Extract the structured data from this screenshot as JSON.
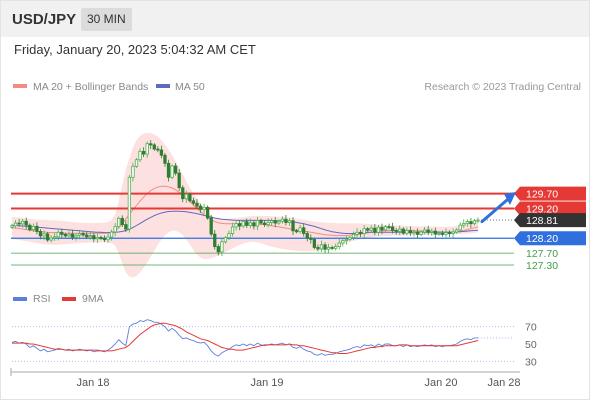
{
  "header": {
    "symbol": "USD/JPY",
    "timeframe": "30 MIN"
  },
  "timestamp": "Friday, January 20, 2023 5:04:32 AM CET",
  "legend": {
    "ma20_label": "MA 20 + Bollinger Bands",
    "ma50_label": "MA 50",
    "copyright": "Research © 2023 Trading Central",
    "rsi_label": "RSI",
    "rsi_ma_label": "9MA"
  },
  "colors": {
    "bullish": "#4caf50",
    "bearish": "#2e7d32",
    "bands": "#fde1e1",
    "ma20": "#f28b82",
    "ma50": "#5c6bc0",
    "resistance": "#e53935",
    "pivot": "#2f6fde",
    "support": "#43a047",
    "current": "#333333",
    "rsi": "#5b7fdb",
    "rsi_ma": "#e53935",
    "arrow": "#2f6fde"
  },
  "chart_data": [
    {
      "type": "candlestick",
      "x_ticks": [
        "Jan 18",
        "Jan 19",
        "Jan 20",
        "Jan 28"
      ],
      "price_levels": [
        {
          "value": 129.7,
          "label": "129.70",
          "kind": "resistance"
        },
        {
          "value": 129.2,
          "label": "129.20",
          "kind": "resistance"
        },
        {
          "value": 128.81,
          "label": "128.81",
          "kind": "current"
        },
        {
          "value": 128.2,
          "label": "128.20",
          "kind": "pivot"
        },
        {
          "value": 127.7,
          "label": "127.70",
          "kind": "support"
        },
        {
          "value": 127.3,
          "label": "127.30",
          "kind": "support"
        }
      ],
      "close": [
        128.62,
        128.71,
        128.68,
        128.77,
        128.64,
        128.49,
        128.6,
        128.43,
        128.28,
        128.35,
        128.14,
        128.21,
        128.25,
        128.4,
        128.33,
        128.28,
        128.34,
        128.24,
        128.3,
        128.36,
        128.31,
        128.25,
        128.29,
        128.18,
        128.23,
        128.2,
        128.15,
        128.24,
        128.41,
        128.59,
        128.87,
        128.66,
        128.51,
        130.25,
        130.62,
        130.84,
        131.12,
        131.03,
        131.38,
        131.34,
        131.2,
        131.17,
        130.99,
        130.72,
        130.25,
        130.63,
        130.39,
        129.9,
        129.53,
        129.68,
        129.46,
        129.38,
        129.28,
        129.17,
        129.24,
        128.88,
        128.34,
        127.92,
        127.74,
        128.08,
        128.22,
        128.36,
        128.58,
        128.69,
        128.61,
        128.76,
        128.63,
        128.72,
        128.61,
        128.8,
        128.71,
        128.66,
        128.73,
        128.79,
        128.71,
        128.77,
        128.84,
        128.73,
        128.79,
        128.45,
        128.43,
        128.55,
        128.36,
        128.21,
        128.16,
        127.89,
        127.84,
        127.98,
        127.83,
        127.89,
        127.86,
        127.92,
        128.04,
        128.12,
        128.16,
        128.22,
        128.33,
        128.4,
        128.36,
        128.52,
        128.47,
        128.54,
        128.4,
        128.57,
        128.48,
        128.59,
        128.58,
        128.46,
        128.44,
        128.51,
        128.37,
        128.46,
        128.38,
        128.41,
        128.33,
        128.41,
        128.48,
        128.4,
        128.44,
        128.34,
        128.36,
        128.33,
        128.39,
        128.36,
        128.41,
        128.48,
        128.64,
        128.7,
        128.76,
        128.69,
        128.79,
        128.81
      ],
      "bands_upper": [
        128.92,
        128.91,
        128.9,
        128.89,
        128.87,
        128.85,
        128.84,
        128.83,
        128.82,
        128.82,
        128.81,
        128.8,
        128.8,
        128.79,
        128.78,
        128.77,
        128.76,
        128.75,
        128.74,
        128.73,
        128.72,
        128.72,
        128.71,
        128.71,
        128.72,
        128.72,
        128.73,
        128.75,
        128.81,
        129.0,
        129.45,
        130.0,
        130.5,
        130.9,
        131.25,
        131.5,
        131.65,
        131.72,
        131.75,
        131.74,
        131.7,
        131.62,
        131.5,
        131.35,
        131.18,
        131.0,
        130.8,
        130.58,
        130.35,
        130.12,
        129.9,
        129.7,
        129.52,
        129.36,
        129.22,
        129.08,
        128.97,
        128.89,
        128.86,
        128.85,
        128.85,
        128.86,
        128.87,
        128.88,
        128.89,
        128.9,
        128.92,
        128.94,
        128.95,
        128.95,
        128.95,
        128.95,
        128.95,
        128.94,
        128.93,
        128.92,
        128.92,
        128.91,
        128.9,
        128.88,
        128.86,
        128.84,
        128.82,
        128.8,
        128.78,
        128.76,
        128.75,
        128.74,
        128.73,
        128.72,
        128.72,
        128.71,
        128.7,
        128.7,
        128.7,
        128.7,
        128.7,
        128.7,
        128.7,
        128.69,
        128.69,
        128.68,
        128.67,
        128.66,
        128.66,
        128.65,
        128.64,
        128.64,
        128.63,
        128.63,
        128.62,
        128.62,
        128.61,
        128.61,
        128.6,
        128.6,
        128.6,
        128.59,
        128.59,
        128.59,
        128.58,
        128.58,
        128.58,
        128.59,
        128.6,
        128.62,
        128.65,
        128.68,
        128.72,
        128.76,
        128.81,
        128.86
      ],
      "bands_lower": [
        128.18,
        128.16,
        128.14,
        128.12,
        128.1,
        128.08,
        128.06,
        128.04,
        128.02,
        128.0,
        127.99,
        127.98,
        127.98,
        127.98,
        127.99,
        128.0,
        128.01,
        128.02,
        128.03,
        128.04,
        128.05,
        128.05,
        128.06,
        128.06,
        128.06,
        128.06,
        128.06,
        128.05,
        128.03,
        127.95,
        127.7,
        127.35,
        127.05,
        126.9,
        126.88,
        126.93,
        127.05,
        127.2,
        127.38,
        127.58,
        127.78,
        127.98,
        128.15,
        128.3,
        128.4,
        128.45,
        128.45,
        128.4,
        128.3,
        128.15,
        127.98,
        127.8,
        127.65,
        127.55,
        127.5,
        127.5,
        127.53,
        127.57,
        127.62,
        127.68,
        127.74,
        127.8,
        127.86,
        127.92,
        127.98,
        128.02,
        128.06,
        128.08,
        128.08,
        128.06,
        128.03,
        127.99,
        127.95,
        127.92,
        127.89,
        127.86,
        127.84,
        127.82,
        127.8,
        127.79,
        127.78,
        127.77,
        127.76,
        127.76,
        127.76,
        127.77,
        127.78,
        127.8,
        127.82,
        127.85,
        127.88,
        127.92,
        127.96,
        128.0,
        128.04,
        128.08,
        128.11,
        128.14,
        128.17,
        128.19,
        128.21,
        128.23,
        128.25,
        128.26,
        128.27,
        128.28,
        128.28,
        128.29,
        128.29,
        128.29,
        128.3,
        128.3,
        128.3,
        128.31,
        128.31,
        128.31,
        128.31,
        128.32,
        128.32,
        128.32,
        128.32,
        128.33,
        128.33,
        128.33,
        128.33,
        128.34,
        128.34,
        128.35,
        128.36,
        128.37,
        128.38,
        128.39
      ],
      "ma20": [
        128.55,
        128.54,
        128.53,
        128.51,
        128.49,
        128.47,
        128.45,
        128.43,
        128.42,
        128.41,
        128.4,
        128.39,
        128.39,
        128.38,
        128.38,
        128.37,
        128.37,
        128.37,
        128.37,
        128.37,
        128.37,
        128.37,
        128.37,
        128.37,
        128.37,
        128.37,
        128.37,
        128.38,
        128.4,
        128.45,
        128.55,
        128.7,
        128.85,
        129.0,
        129.15,
        129.3,
        129.45,
        129.58,
        129.7,
        129.8,
        129.87,
        129.92,
        129.95,
        129.95,
        129.93,
        129.89,
        129.83,
        129.75,
        129.66,
        129.55,
        129.44,
        129.32,
        129.2,
        129.09,
        128.99,
        128.9,
        128.82,
        128.76,
        128.72,
        128.7,
        128.69,
        128.69,
        128.69,
        128.69,
        128.69,
        128.69,
        128.69,
        128.69,
        128.69,
        128.68,
        128.67,
        128.66,
        128.64,
        128.62,
        128.6,
        128.58,
        128.56,
        128.54,
        128.52,
        128.5,
        128.48,
        128.46,
        128.44,
        128.42,
        128.4,
        128.38,
        128.36,
        128.34,
        128.32,
        128.31,
        128.3,
        128.29,
        128.29,
        128.29,
        128.29,
        128.3,
        128.31,
        128.32,
        128.34,
        128.36,
        128.38,
        128.4,
        128.42,
        128.44,
        128.45,
        128.46,
        128.46,
        128.46,
        128.46,
        128.46,
        128.46,
        128.46,
        128.46,
        128.45,
        128.45,
        128.44,
        128.44,
        128.43,
        128.43,
        128.42,
        128.42,
        128.41,
        128.41,
        128.41,
        128.41,
        128.42,
        128.44,
        128.46,
        128.49,
        128.52,
        128.55,
        128.58
      ],
      "ma50": [
        128.64,
        128.63,
        128.62,
        128.61,
        128.6,
        128.59,
        128.58,
        128.57,
        128.56,
        128.55,
        128.54,
        128.53,
        128.52,
        128.51,
        128.5,
        128.49,
        128.48,
        128.47,
        128.46,
        128.45,
        128.44,
        128.43,
        128.42,
        128.41,
        128.4,
        128.4,
        128.39,
        128.39,
        128.39,
        128.4,
        128.41,
        128.43,
        128.46,
        128.5,
        128.56,
        128.63,
        128.7,
        128.77,
        128.84,
        128.9,
        128.96,
        129.01,
        129.05,
        129.08,
        129.1,
        129.11,
        129.11,
        129.11,
        129.1,
        129.09,
        129.07,
        129.05,
        129.03,
        129.0,
        128.97,
        128.94,
        128.91,
        128.88,
        128.86,
        128.84,
        128.83,
        128.82,
        128.81,
        128.8,
        128.8,
        128.8,
        128.8,
        128.8,
        128.8,
        128.8,
        128.8,
        128.8,
        128.8,
        128.8,
        128.79,
        128.79,
        128.78,
        128.77,
        128.76,
        128.75,
        128.73,
        128.71,
        128.69,
        128.66,
        128.63,
        128.6,
        128.56,
        128.52,
        128.48,
        128.45,
        128.42,
        128.4,
        128.38,
        128.37,
        128.36,
        128.36,
        128.36,
        128.37,
        128.38,
        128.39,
        128.4,
        128.4,
        128.4,
        128.4,
        128.4,
        128.4,
        128.4,
        128.4,
        128.4,
        128.4,
        128.4,
        128.4,
        128.4,
        128.4,
        128.4,
        128.4,
        128.4,
        128.4,
        128.4,
        128.4,
        128.4,
        128.4,
        128.4,
        128.4,
        128.4,
        128.41,
        128.42,
        128.43,
        128.44,
        128.45,
        128.46,
        128.47
      ]
    },
    {
      "type": "line",
      "y_ticks": [
        70,
        50,
        30
      ],
      "ylim": [
        20,
        80
      ],
      "series": [
        {
          "name": "RSI",
          "values": [
            52,
            53,
            51,
            52,
            50,
            46,
            48,
            45,
            42,
            44,
            41,
            42,
            43,
            45,
            44,
            43,
            44,
            42,
            43,
            44,
            43,
            42,
            43,
            41,
            42,
            42,
            41,
            43,
            46,
            50,
            55,
            51,
            48,
            70,
            73,
            74,
            77,
            76,
            78,
            77,
            75,
            75,
            73,
            70,
            65,
            68,
            65,
            60,
            56,
            57,
            55,
            54,
            52,
            51,
            52,
            48,
            42,
            38,
            36,
            40,
            42,
            44,
            47,
            49,
            48,
            50,
            48,
            50,
            48,
            51,
            49,
            48,
            49,
            50,
            49,
            50,
            51,
            49,
            50,
            46,
            45,
            47,
            44,
            42,
            41,
            38,
            37,
            39,
            37,
            38,
            38,
            39,
            41,
            42,
            43,
            44,
            46,
            47,
            46,
            49,
            48,
            49,
            47,
            50,
            48,
            50,
            50,
            48,
            48,
            49,
            47,
            49,
            47,
            48,
            47,
            48,
            49,
            48,
            49,
            47,
            48,
            47,
            48,
            48,
            49,
            50,
            53,
            55,
            56,
            55,
            57,
            57
          ]
        },
        {
          "name": "9MA",
          "values": [
            51,
            51,
            51,
            51,
            51,
            50,
            50,
            49,
            48,
            47,
            46,
            45,
            44,
            44,
            44,
            43,
            43,
            43,
            43,
            43,
            43,
            43,
            43,
            43,
            43,
            42,
            42,
            42,
            42,
            43,
            44,
            45,
            46,
            49,
            53,
            57,
            61,
            64,
            67,
            70,
            72,
            73,
            74,
            74,
            73,
            72,
            71,
            69,
            67,
            64,
            62,
            60,
            58,
            56,
            55,
            54,
            52,
            50,
            48,
            46,
            45,
            44,
            44,
            43,
            43,
            43,
            44,
            45,
            46,
            47,
            48,
            49,
            49,
            49,
            49,
            49,
            49,
            49,
            50,
            49,
            49,
            48,
            48,
            47,
            46,
            45,
            44,
            43,
            42,
            41,
            40,
            40,
            39,
            39,
            39,
            40,
            41,
            42,
            43,
            44,
            45,
            46,
            46,
            47,
            47,
            48,
            48,
            48,
            48,
            49,
            49,
            49,
            48,
            48,
            48,
            48,
            48,
            48,
            48,
            48,
            48,
            48,
            48,
            48,
            48,
            48,
            49,
            50,
            51,
            52,
            53,
            54
          ]
        }
      ]
    }
  ]
}
